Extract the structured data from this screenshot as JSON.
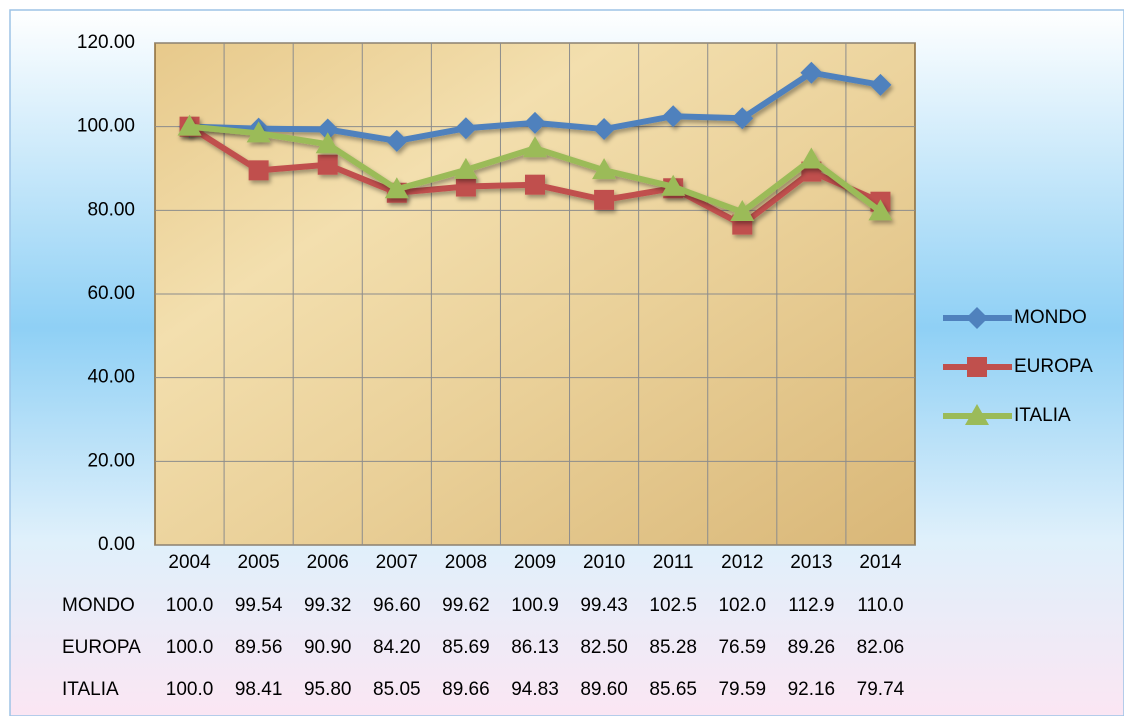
{
  "chart_data": {
    "type": "line",
    "categories": [
      "2004",
      "2005",
      "2006",
      "2007",
      "2008",
      "2009",
      "2010",
      "2011",
      "2012",
      "2013",
      "2014"
    ],
    "series": [
      {
        "name": "MONDO",
        "color": "#4f81bd",
        "marker": "diamond",
        "values": [
          100.0,
          99.54,
          99.32,
          96.6,
          99.62,
          100.9,
          99.43,
          102.5,
          102.0,
          112.9,
          110.0
        ],
        "value_labels": [
          "100.0",
          "99.54",
          "99.32",
          "96.60",
          "99.62",
          "100.9",
          "99.43",
          "102.5",
          "102.0",
          "112.9",
          "110.0"
        ]
      },
      {
        "name": "EUROPA",
        "color": "#c0504d",
        "marker": "square",
        "values": [
          100.0,
          89.56,
          90.9,
          84.2,
          85.69,
          86.13,
          82.5,
          85.28,
          76.59,
          89.26,
          82.06
        ],
        "value_labels": [
          "100.0",
          "89.56",
          "90.90",
          "84.20",
          "85.69",
          "86.13",
          "82.50",
          "85.28",
          "76.59",
          "89.26",
          "82.06"
        ]
      },
      {
        "name": "ITALIA",
        "color": "#9bbb59",
        "marker": "triangle",
        "values": [
          100.0,
          98.41,
          95.8,
          85.05,
          89.66,
          94.83,
          89.6,
          85.65,
          79.59,
          92.16,
          79.74
        ],
        "value_labels": [
          "100.0",
          "98.41",
          "95.80",
          "85.05",
          "89.66",
          "94.83",
          "89.60",
          "85.65",
          "79.59",
          "92.16",
          "79.74"
        ]
      }
    ],
    "ylim": [
      0,
      120
    ],
    "yticks": [
      {
        "value": 0,
        "label": "0.00"
      },
      {
        "value": 20,
        "label": "20.00"
      },
      {
        "value": 40,
        "label": "40.00"
      },
      {
        "value": 60,
        "label": "60.00"
      },
      {
        "value": 80,
        "label": "80.00"
      },
      {
        "value": 100,
        "label": "100.00"
      },
      {
        "value": 120,
        "label": "120.00"
      }
    ],
    "grid": true,
    "legend": "right"
  }
}
